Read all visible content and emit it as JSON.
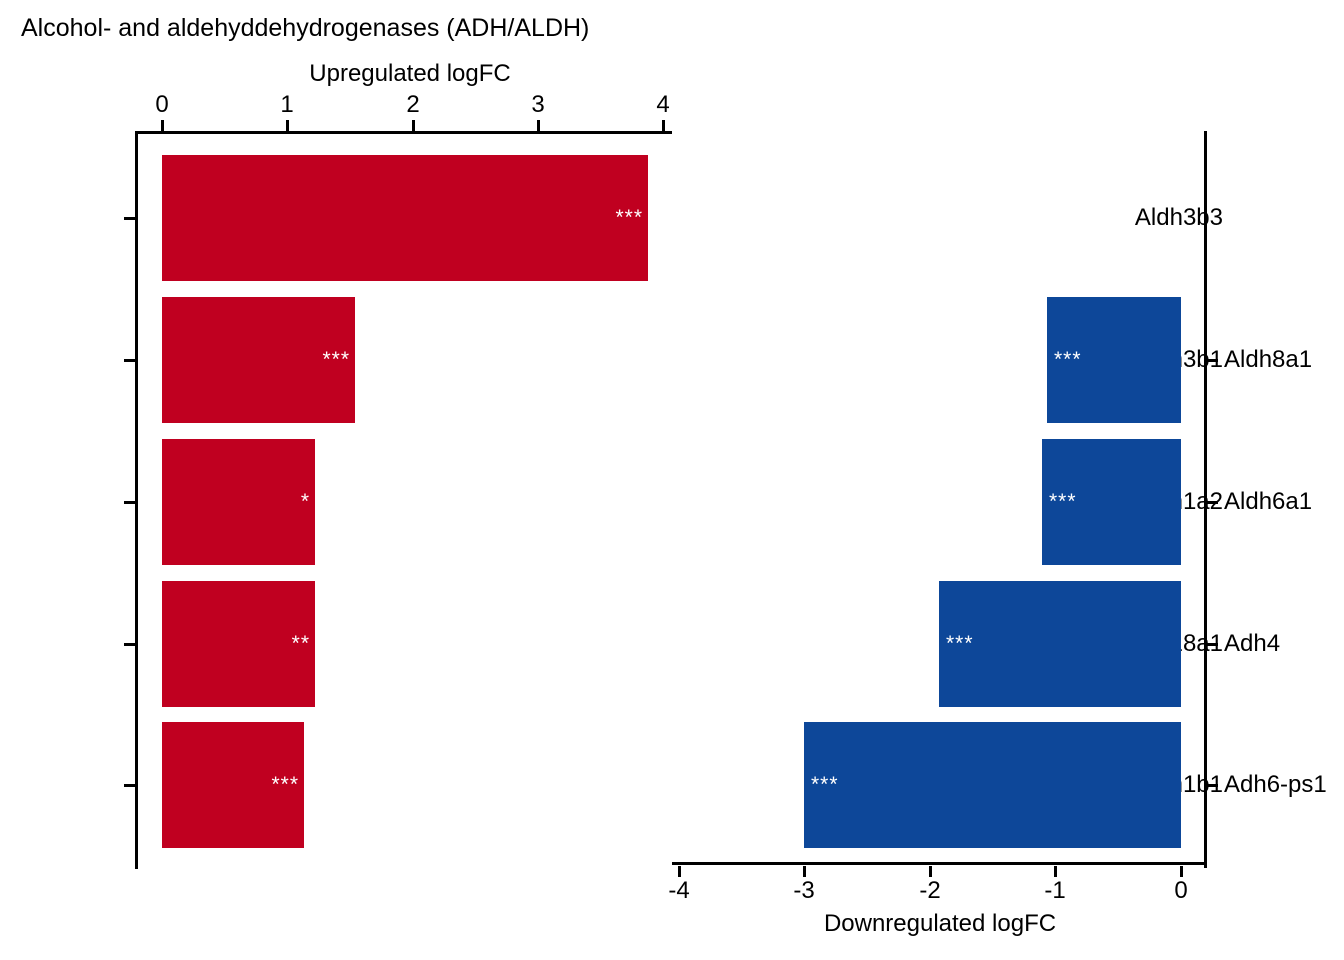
{
  "figure_title": "Alcohol- and aldehyddehydrogenases (ADH/ALDH)",
  "background": "#FFFFFF",
  "text_color": "#000000",
  "chart_data": [
    {
      "type": "bar",
      "orientation": "horizontal",
      "panel": "upregulated",
      "axis_title": "Upregulated logFC",
      "axis_side": "top",
      "category_label_side": "left",
      "categories": [
        "Aldh3b3",
        "Aldh3b1",
        "Aldh1a2",
        "Aldh18a1",
        "Aldh1b1"
      ],
      "values": [
        3.88,
        1.54,
        1.22,
        1.22,
        1.13
      ],
      "significance": [
        "***",
        "***",
        "*",
        "**",
        "***"
      ],
      "bar_color": "#C00020",
      "sig_color": "#FFFFFF",
      "xlim": [
        0,
        4
      ],
      "ticks": [
        0,
        1,
        2,
        3,
        4
      ],
      "tick_labels": [
        "0",
        "1",
        "2",
        "3",
        "4"
      ],
      "grid": false,
      "legend": "none"
    },
    {
      "type": "bar",
      "orientation": "horizontal",
      "panel": "downregulated",
      "axis_title": "Downregulated logFC",
      "axis_side": "bottom",
      "category_label_side": "right",
      "categories": [
        "Aldh8a1",
        "Aldh6a1",
        "Adh4",
        "Adh6-ps1"
      ],
      "values": [
        -1.07,
        -1.11,
        -1.93,
        -3.0
      ],
      "significance": [
        "***",
        "***",
        "***",
        "***"
      ],
      "bar_color": "#0D4799",
      "sig_color": "#FFFFFF",
      "xlim": [
        -4,
        0
      ],
      "ticks": [
        -4,
        -3,
        -2,
        -1,
        0
      ],
      "tick_labels": [
        "-4",
        "-3",
        "-2",
        "-1",
        "0"
      ],
      "grid": false,
      "legend": "none"
    }
  ]
}
